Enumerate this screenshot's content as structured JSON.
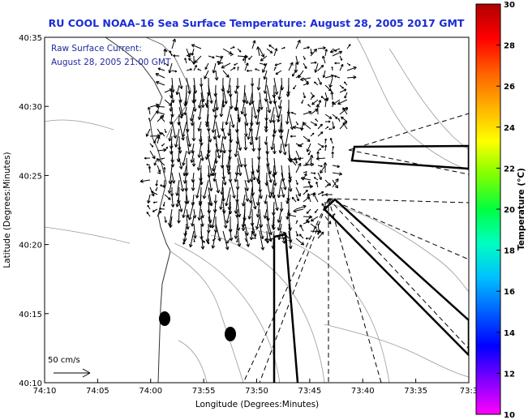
{
  "title": "RU COOL  NOAA–16  Sea Surface Temperature:  August 28, 2005 2017 GMT",
  "legend": {
    "line1": "Raw Surface Current:",
    "line2": "August 28, 2005 21:00 GMT",
    "scale_label": "50 cm/s"
  },
  "axes": {
    "xlabel": "Longitude (Degrees:Minutes)",
    "ylabel": "Latitude (Degrees:Minutes)",
    "x_ticks": [
      "74:10",
      "74:05",
      "74:00",
      "73:55",
      "73:50",
      "73:45",
      "73:40",
      "73:35",
      "73:3"
    ],
    "y_ticks": [
      "40:35",
      "40:30",
      "40:25",
      "40:20",
      "40:15",
      "40:10"
    ]
  },
  "colorbar": {
    "label": "Temperature (°C)",
    "ticks": [
      "30",
      "28",
      "26",
      "24",
      "22",
      "20",
      "18",
      "16",
      "14",
      "12",
      "10"
    ],
    "range": [
      10,
      30
    ],
    "colors": [
      "#ff00ff",
      "#8000ff",
      "#0000ff",
      "#0060ff",
      "#00c0ff",
      "#00ffc0",
      "#00ff40",
      "#80ff00",
      "#ffff00",
      "#ffb000",
      "#ff6000",
      "#ff0000",
      "#b00000"
    ]
  },
  "markers": [
    {
      "name": "buoy-marker-west"
    },
    {
      "name": "buoy-marker-east"
    }
  ]
}
